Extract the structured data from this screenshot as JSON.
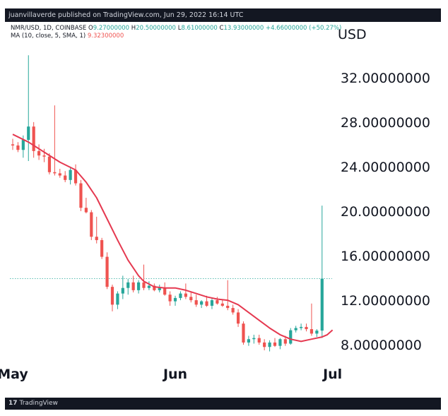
{
  "header": {
    "published_text": "juanvillaverde published on TradingView.com, Jun 29, 2022 16:14 UTC"
  },
  "legend": {
    "symbol": "NMR/USD, 1D, COINBASE",
    "open_label": "O",
    "open": "9.27000000",
    "high_label": "H",
    "high": "20.50000000",
    "low_label": "L",
    "low": "8.61000000",
    "close_label": "C",
    "close": "13.93000000",
    "change": "+4.66000000 (+50.27%)",
    "ma_label": "MA (10, close, 5, SMA, 1)",
    "ma_value": "9.32300000"
  },
  "footer": {
    "brand": "TradingView",
    "logo": "17"
  },
  "colors": {
    "up": "#26a69a",
    "down": "#ef5350",
    "ma": "#e53950",
    "price_line": "#26a69a",
    "frame": "#131722"
  },
  "chart_data": {
    "type": "candlestick",
    "currency_label": "USD",
    "y_ticks": [
      "8.00000000",
      "12.00000000",
      "16.00000000",
      "20.00000000",
      "24.00000000",
      "28.00000000",
      "32.00000000"
    ],
    "y_tick_values": [
      8,
      12,
      16,
      20,
      24,
      28,
      32
    ],
    "ylim": [
      4.2,
      37.0
    ],
    "x_labels": [
      {
        "label": "May",
        "day": 0
      },
      {
        "label": "Jun",
        "day": 31
      },
      {
        "label": "Jul",
        "day": 61
      }
    ],
    "first_day": 0,
    "last_day": 64,
    "current_price": 13.93,
    "ohlc": [
      [
        0,
        26.0,
        26.5,
        25.5,
        25.9
      ],
      [
        1,
        25.9,
        26.2,
        25.3,
        25.5
      ],
      [
        2,
        25.5,
        26.8,
        24.8,
        26.4
      ],
      [
        3,
        26.4,
        34.0,
        24.5,
        27.6
      ],
      [
        4,
        27.6,
        28.0,
        24.8,
        25.4
      ],
      [
        5,
        25.4,
        26.0,
        24.6,
        25.0
      ],
      [
        6,
        25.0,
        25.6,
        24.4,
        24.9
      ],
      [
        7,
        24.9,
        25.2,
        23.3,
        23.5
      ],
      [
        8,
        23.5,
        29.5,
        23.2,
        23.4
      ],
      [
        9,
        23.4,
        23.8,
        23.0,
        23.2
      ],
      [
        10,
        23.2,
        23.6,
        22.6,
        22.8
      ],
      [
        11,
        22.8,
        24.0,
        22.4,
        23.7
      ],
      [
        12,
        23.7,
        24.2,
        22.3,
        22.5
      ],
      [
        13,
        22.5,
        22.8,
        20.0,
        20.3
      ],
      [
        14,
        20.3,
        21.2,
        19.8,
        19.9
      ],
      [
        15,
        19.9,
        20.1,
        17.4,
        17.7
      ],
      [
        16,
        17.7,
        19.5,
        17.1,
        17.4
      ],
      [
        17,
        17.4,
        17.6,
        15.7,
        15.9
      ],
      [
        18,
        15.9,
        16.3,
        13.0,
        13.2
      ],
      [
        19,
        13.2,
        13.4,
        11.0,
        11.6
      ],
      [
        20,
        11.6,
        12.8,
        11.2,
        12.6
      ],
      [
        21,
        12.6,
        14.2,
        12.1,
        13.1
      ],
      [
        22,
        13.1,
        13.9,
        12.5,
        13.6
      ],
      [
        23,
        13.6,
        14.2,
        12.7,
        12.9
      ],
      [
        24,
        12.9,
        13.8,
        12.6,
        13.6
      ],
      [
        25,
        13.6,
        15.2,
        12.9,
        13.1
      ],
      [
        26,
        13.1,
        13.7,
        12.9,
        13.3
      ],
      [
        27,
        13.3,
        13.5,
        12.8,
        12.9
      ],
      [
        28,
        12.9,
        13.4,
        12.7,
        13.1
      ],
      [
        29,
        13.1,
        13.6,
        12.4,
        12.5
      ],
      [
        30,
        12.5,
        12.8,
        11.5,
        11.9
      ],
      [
        31,
        11.9,
        12.4,
        11.5,
        12.2
      ],
      [
        32,
        12.2,
        12.8,
        12.0,
        12.6
      ],
      [
        33,
        12.6,
        13.5,
        12.1,
        12.3
      ],
      [
        34,
        12.3,
        12.8,
        11.8,
        12.0
      ],
      [
        35,
        12.0,
        12.5,
        11.4,
        11.6
      ],
      [
        36,
        11.6,
        12.0,
        11.3,
        11.9
      ],
      [
        37,
        11.9,
        12.4,
        11.4,
        11.5
      ],
      [
        38,
        11.5,
        12.2,
        11.2,
        12.0
      ],
      [
        39,
        12.0,
        12.3,
        11.6,
        11.7
      ],
      [
        40,
        11.7,
        12.0,
        11.4,
        11.5
      ],
      [
        41,
        11.5,
        13.8,
        11.1,
        11.3
      ],
      [
        42,
        11.3,
        11.6,
        10.7,
        10.9
      ],
      [
        43,
        10.9,
        11.2,
        9.6,
        9.9
      ],
      [
        44,
        9.9,
        10.1,
        8.0,
        8.2
      ],
      [
        45,
        8.2,
        8.8,
        7.9,
        8.5
      ],
      [
        46,
        8.5,
        8.9,
        8.1,
        8.6
      ],
      [
        47,
        8.6,
        8.9,
        8.0,
        8.2
      ],
      [
        48,
        8.2,
        8.5,
        7.5,
        7.8
      ],
      [
        49,
        7.8,
        8.4,
        7.4,
        8.2
      ],
      [
        50,
        8.2,
        8.6,
        7.8,
        7.9
      ],
      [
        51,
        7.9,
        8.6,
        7.6,
        8.5
      ],
      [
        52,
        8.5,
        8.8,
        7.9,
        8.1
      ],
      [
        53,
        8.1,
        9.5,
        8.0,
        9.3
      ],
      [
        54,
        9.3,
        9.7,
        9.1,
        9.5
      ],
      [
        55,
        9.5,
        9.9,
        9.3,
        9.6
      ],
      [
        56,
        9.6,
        9.9,
        9.2,
        9.4
      ],
      [
        57,
        9.4,
        11.7,
        8.8,
        9.0
      ],
      [
        58,
        9.0,
        9.4,
        8.7,
        9.27
      ],
      [
        59,
        9.27,
        20.5,
        8.61,
        13.93
      ]
    ],
    "ma": [
      [
        0,
        26.9
      ],
      [
        3,
        26.2
      ],
      [
        6,
        25.3
      ],
      [
        9,
        24.4
      ],
      [
        12,
        23.7
      ],
      [
        14,
        22.6
      ],
      [
        16,
        21.2
      ],
      [
        18,
        19.3
      ],
      [
        20,
        17.4
      ],
      [
        22,
        15.6
      ],
      [
        24,
        14.2
      ],
      [
        25,
        13.7
      ],
      [
        27,
        13.2
      ],
      [
        29,
        13.1
      ],
      [
        31,
        13.1
      ],
      [
        33,
        12.9
      ],
      [
        35,
        12.6
      ],
      [
        37,
        12.3
      ],
      [
        39,
        12.1
      ],
      [
        41,
        12.0
      ],
      [
        43,
        11.6
      ],
      [
        45,
        10.9
      ],
      [
        47,
        10.2
      ],
      [
        49,
        9.5
      ],
      [
        51,
        8.9
      ],
      [
        53,
        8.5
      ],
      [
        55,
        8.3
      ],
      [
        57,
        8.5
      ],
      [
        59,
        8.7
      ],
      [
        60,
        8.9
      ],
      [
        61,
        9.32
      ]
    ]
  }
}
